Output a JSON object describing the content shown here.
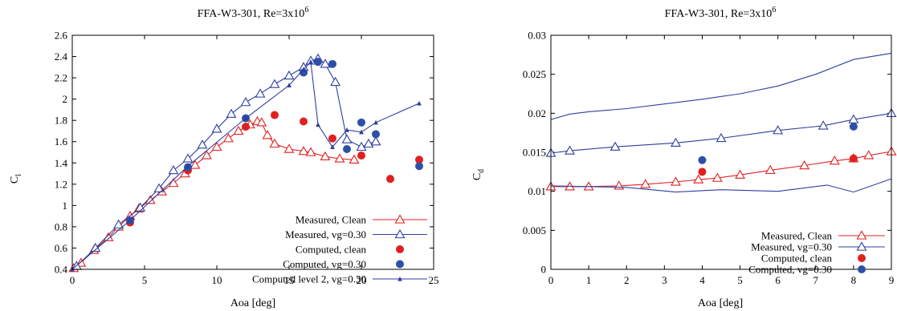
{
  "chart_data": [
    {
      "type": "line",
      "title": "FFA-W3-301, Re=3x10",
      "title_sup": "6",
      "xlabel": "Aoa [deg]",
      "ylabel": "C",
      "ylabel_sub": "l",
      "xlim": [
        0,
        25
      ],
      "ylim": [
        0.4,
        2.6
      ],
      "xticks": [
        "0",
        "5",
        "10",
        "15",
        "20",
        "25"
      ],
      "yticks": [
        "0.4",
        "0.6",
        "0.8",
        "1",
        "1.2",
        "1.4",
        "1.6",
        "1.8",
        "2",
        "2.2",
        "2.4",
        "2.6"
      ],
      "legend_position": "bottom-right",
      "series": [
        {
          "name": "Measured, Clean",
          "color": "#e02020",
          "marker": "triangle",
          "x": [
            0.1,
            0.6,
            1.5,
            2.5,
            3.2,
            4.0,
            4.6,
            5.4,
            6.2,
            7.0,
            7.8,
            8.5,
            9.3,
            10.0,
            10.8,
            11.5,
            12.3,
            12.8,
            13.1,
            13.5,
            14.0,
            15.0,
            16.0,
            16.5,
            17.5,
            18.5,
            19.5
          ],
          "y": [
            0.41,
            0.46,
            0.58,
            0.7,
            0.8,
            0.9,
            0.97,
            1.05,
            1.13,
            1.21,
            1.3,
            1.38,
            1.47,
            1.55,
            1.63,
            1.7,
            1.76,
            1.79,
            1.78,
            1.66,
            1.58,
            1.53,
            1.51,
            1.5,
            1.46,
            1.44,
            1.43
          ]
        },
        {
          "name": "Measured, vg=0.30",
          "color": "#2e3f9e",
          "marker": "triangle",
          "x": [
            0.3,
            1.6,
            3.2,
            4.7,
            6.0,
            7.0,
            8.0,
            9.0,
            10.0,
            11.0,
            12.0,
            13.0,
            14.0,
            15.0,
            16.0,
            16.5,
            17.0,
            17.5,
            18.2,
            19.0,
            20.0,
            20.5,
            21.0
          ],
          "y": [
            0.43,
            0.6,
            0.82,
            0.98,
            1.16,
            1.33,
            1.44,
            1.57,
            1.72,
            1.86,
            1.97,
            2.05,
            2.14,
            2.22,
            2.3,
            2.36,
            2.38,
            2.33,
            2.16,
            1.62,
            1.55,
            1.58,
            1.6
          ]
        },
        {
          "name": "Computed, clean",
          "color": "#e02020",
          "marker": "circle",
          "x": [
            4.0,
            8.0,
            12.0,
            14.0,
            16.0,
            18.0,
            20.0,
            22.0,
            24.0
          ],
          "y": [
            0.84,
            1.33,
            1.74,
            1.85,
            1.79,
            1.63,
            1.47,
            1.25,
            1.43
          ]
        },
        {
          "name": "Computed, vg=0.30",
          "color": "#2e4fa8",
          "marker": "circle",
          "x": [
            4.0,
            8.0,
            12.0,
            16.0,
            17.0,
            18.0,
            19.0,
            20.0,
            21.0,
            24.0
          ],
          "y": [
            0.86,
            1.36,
            1.82,
            2.25,
            2.35,
            2.33,
            1.53,
            1.78,
            1.67,
            1.37
          ]
        },
        {
          "name": "Computed level 2, vg=0.30",
          "color": "#2e3f9e",
          "marker": "small-triangle",
          "x": [
            0.0,
            4.0,
            8.0,
            12.0,
            15.0,
            16.0,
            16.5,
            17.0,
            18.0,
            19.0,
            20.0,
            21.0,
            24.0
          ],
          "y": [
            0.4,
            0.86,
            1.37,
            1.82,
            2.13,
            2.28,
            2.35,
            1.76,
            1.55,
            1.71,
            1.69,
            1.78,
            1.96
          ]
        }
      ]
    },
    {
      "type": "line",
      "title": "FFA-W3-301, Re=3x10",
      "title_sup": "6",
      "xlabel": "Aoa [deg]",
      "ylabel": "C",
      "ylabel_sub": "d",
      "xlim": [
        0,
        9
      ],
      "ylim": [
        0,
        0.03
      ],
      "xticks": [
        "0",
        "1",
        "2",
        "3",
        "4",
        "5",
        "6",
        "7",
        "8",
        "9"
      ],
      "yticks": [
        "0",
        "0.005",
        "0.01",
        "0.015",
        "0.02",
        "0.025",
        "0.03"
      ],
      "legend_position": "bottom-right",
      "series": [
        {
          "name": "Measured, Clean",
          "color": "#e02020",
          "marker": "triangle",
          "x": [
            0.0,
            0.5,
            1.0,
            1.8,
            2.5,
            3.3,
            3.9,
            4.4,
            5.0,
            5.8,
            6.7,
            7.5,
            8.0,
            8.4,
            9.0
          ],
          "y": [
            0.0106,
            0.0106,
            0.0106,
            0.0107,
            0.0109,
            0.0112,
            0.0115,
            0.0117,
            0.0121,
            0.0127,
            0.0133,
            0.0139,
            0.0142,
            0.0146,
            0.0151
          ]
        },
        {
          "name": "Measured, vg=0.30",
          "color": "#2e3f9e",
          "marker": "triangle",
          "x": [
            0.0,
            0.5,
            1.7,
            3.3,
            4.5,
            6.0,
            7.2,
            8.0,
            9.0
          ],
          "y": [
            0.0149,
            0.0152,
            0.0157,
            0.0162,
            0.0168,
            0.0178,
            0.0184,
            0.0192,
            0.02
          ]
        },
        {
          "name": "Computed, clean",
          "color": "#e02020",
          "marker": "circle",
          "x": [
            4.0,
            8.0
          ],
          "y": [
            0.0125,
            0.0142
          ]
        },
        {
          "name": "Computed, vg=0.30",
          "color": "#2e4fa8",
          "marker": "circle",
          "x": [
            4.0,
            8.0
          ],
          "y": [
            0.014,
            0.0183
          ]
        },
        {
          "color": "#2e3f9e",
          "marker": "none",
          "x": [
            0.0,
            0.5,
            1.0,
            2.0,
            3.0,
            4.0,
            5.0,
            6.0,
            7.0,
            8.0,
            9.0
          ],
          "y": [
            0.0192,
            0.0199,
            0.0202,
            0.0206,
            0.0212,
            0.0218,
            0.0225,
            0.0235,
            0.025,
            0.0269,
            0.0277
          ]
        },
        {
          "color": "#2e3f9e",
          "marker": "none",
          "x": [
            0.0,
            1.0,
            2.0,
            3.3,
            4.5,
            6.0,
            7.3,
            8.0,
            9.0
          ],
          "y": [
            0.0107,
            0.0106,
            0.0105,
            0.0099,
            0.0102,
            0.01,
            0.0108,
            0.0099,
            0.0116
          ]
        }
      ]
    }
  ]
}
